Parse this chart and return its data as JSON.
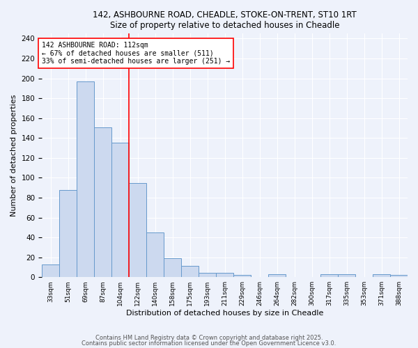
{
  "title_line1": "142, ASHBOURNE ROAD, CHEADLE, STOKE-ON-TRENT, ST10 1RT",
  "title_line2": "Size of property relative to detached houses in Cheadle",
  "xlabel": "Distribution of detached houses by size in Cheadle",
  "ylabel": "Number of detached properties",
  "bar_labels": [
    "33sqm",
    "51sqm",
    "69sqm",
    "87sqm",
    "104sqm",
    "122sqm",
    "140sqm",
    "158sqm",
    "175sqm",
    "193sqm",
    "211sqm",
    "229sqm",
    "246sqm",
    "264sqm",
    "282sqm",
    "300sqm",
    "317sqm",
    "335sqm",
    "353sqm",
    "371sqm",
    "388sqm"
  ],
  "bar_values": [
    13,
    88,
    197,
    151,
    135,
    95,
    45,
    19,
    11,
    4,
    4,
    2,
    0,
    3,
    0,
    0,
    3,
    3,
    0,
    3,
    2
  ],
  "bar_color": "#ccd9ef",
  "bar_edge_color": "#6699cc",
  "vline_x": 4.5,
  "vline_color": "red",
  "annotation_text": "142 ASHBOURNE ROAD: 112sqm\n← 67% of detached houses are smaller (511)\n33% of semi-detached houses are larger (251) →",
  "annotation_box_edge": "red",
  "annotation_box_face": "white",
  "ylim": [
    0,
    245
  ],
  "yticks": [
    0,
    20,
    40,
    60,
    80,
    100,
    120,
    140,
    160,
    180,
    200,
    220,
    240
  ],
  "bg_color": "#eef2fb",
  "grid_color": "#ffffff",
  "footer_line1": "Contains HM Land Registry data © Crown copyright and database right 2025.",
  "footer_line2": "Contains public sector information licensed under the Open Government Licence v3.0."
}
